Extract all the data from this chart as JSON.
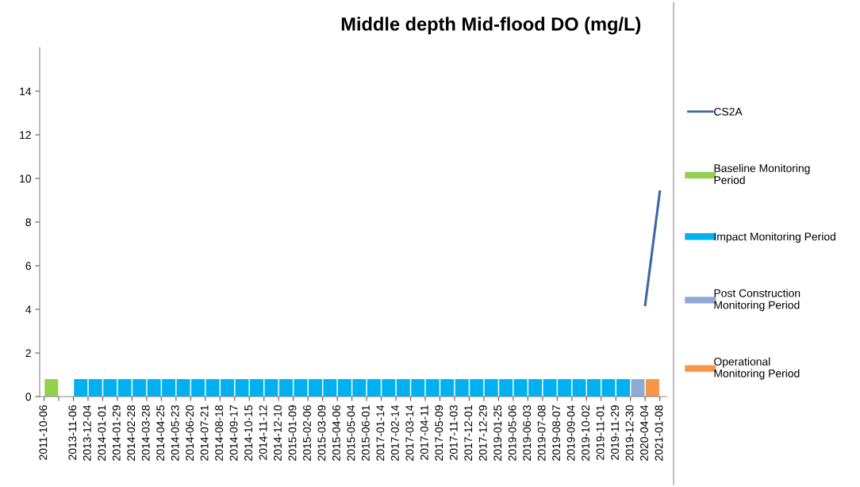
{
  "chart_data": {
    "type": "line",
    "title": "Middle depth Mid-flood DO (mg/L)",
    "categories": [
      "2011-10-06",
      null,
      "2013-11-06",
      "2013-12-04",
      "2014-01-01",
      "2014-01-29",
      "2014-02-28",
      "2014-03-28",
      "2014-04-25",
      "2014-05-23",
      "2014-06-20",
      "2014-07-21",
      "2014-08-18",
      "2014-09-17",
      "2014-10-15",
      "2014-11-12",
      "2014-12-10",
      "2015-01-09",
      "2015-02-06",
      "2015-03-09",
      "2015-04-06",
      "2015-05-04",
      "2015-06-01",
      "2017-01-14",
      "2017-02-14",
      "2017-03-14",
      "2017-04-11",
      "2017-05-09",
      "2017-11-03",
      "2017-12-01",
      "2017-12-29",
      "2019-01-25",
      "2019-05-06",
      "2019-06-03",
      "2019-07-08",
      "2019-08-07",
      "2019-09-04",
      "2019-10-02",
      "2019-11-01",
      "2019-11-29",
      "2019-12-30",
      "2020-04-04",
      "2021-01-08"
    ],
    "series": [
      {
        "name": "CS2A",
        "color": "#3c67a6",
        "values": [
          null,
          null,
          null,
          null,
          null,
          null,
          null,
          null,
          null,
          null,
          null,
          null,
          null,
          null,
          null,
          null,
          null,
          null,
          null,
          null,
          null,
          null,
          null,
          null,
          null,
          null,
          null,
          null,
          null,
          null,
          null,
          null,
          null,
          null,
          null,
          null,
          null,
          null,
          null,
          null,
          null,
          4.2,
          9.4
        ]
      },
      {
        "name": "Baseline Monitoring Period",
        "type": "bar",
        "color": "#92d050",
        "values": [
          0.8,
          null,
          null,
          null,
          null,
          null,
          null,
          null,
          null,
          null,
          null,
          null,
          null,
          null,
          null,
          null,
          null,
          null,
          null,
          null,
          null,
          null,
          null,
          null,
          null,
          null,
          null,
          null,
          null,
          null,
          null,
          null,
          null,
          null,
          null,
          null,
          null,
          null,
          null,
          null,
          null,
          null,
          null
        ]
      },
      {
        "name": "Impact Monitoring Period",
        "type": "bar",
        "color": "#00b0f0",
        "values": [
          null,
          null,
          0.8,
          0.8,
          0.8,
          0.8,
          0.8,
          0.8,
          0.8,
          0.8,
          0.8,
          0.8,
          0.8,
          0.8,
          0.8,
          0.8,
          0.8,
          0.8,
          0.8,
          0.8,
          0.8,
          0.8,
          0.8,
          0.8,
          0.8,
          0.8,
          0.8,
          0.8,
          0.8,
          0.8,
          0.8,
          0.8,
          0.8,
          0.8,
          0.8,
          0.8,
          0.8,
          0.8,
          0.8,
          0.8,
          null,
          null,
          null
        ]
      },
      {
        "name": "Post Construction Monitoring Period",
        "type": "bar",
        "color": "#8eaad6",
        "values": [
          null,
          null,
          null,
          null,
          null,
          null,
          null,
          null,
          null,
          null,
          null,
          null,
          null,
          null,
          null,
          null,
          null,
          null,
          null,
          null,
          null,
          null,
          null,
          null,
          null,
          null,
          null,
          null,
          null,
          null,
          null,
          null,
          null,
          null,
          null,
          null,
          null,
          null,
          null,
          null,
          0.8,
          null,
          null
        ]
      },
      {
        "name": "Operational Monitoring Period",
        "type": "bar",
        "color": "#f79646",
        "values": [
          null,
          null,
          null,
          null,
          null,
          null,
          null,
          null,
          null,
          null,
          null,
          null,
          null,
          null,
          null,
          null,
          null,
          null,
          null,
          null,
          null,
          null,
          null,
          null,
          null,
          null,
          null,
          null,
          null,
          null,
          null,
          null,
          null,
          null,
          null,
          null,
          null,
          null,
          null,
          null,
          null,
          0.8,
          null
        ]
      }
    ],
    "ylim": [
      0,
      16
    ],
    "yticks": [
      0,
      2,
      4,
      6,
      8,
      10,
      12,
      14
    ],
    "grid": false,
    "legend": "right",
    "marker": "none",
    "line_style": "solid"
  }
}
